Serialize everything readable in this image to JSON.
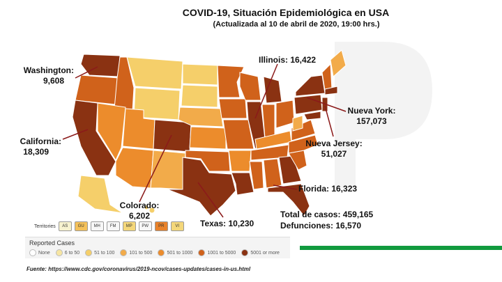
{
  "header": {
    "title": "COVID-19, Situación Epidemiológica en USA",
    "subtitle": "(Actualizada al 10 de abril de 2020, 19:00 hrs.)"
  },
  "callouts": {
    "washington": {
      "name": "Washington:",
      "value": "9,608"
    },
    "illinois": {
      "text": "Illinois: 16,422"
    },
    "nueva_york": {
      "name": "Nueva York:",
      "value": "157,073"
    },
    "california": {
      "name": "California:",
      "value": "18,309"
    },
    "nueva_jersey": {
      "name": "Nueva Jersey:",
      "value": "51,027"
    },
    "florida": {
      "text": "Florida: 16,323"
    },
    "colorado": {
      "name": "Colorado:",
      "value": "6,202"
    },
    "texas": {
      "text": "Texas: 10,230"
    }
  },
  "totals": {
    "cases": "Total de casos: 459,165",
    "deaths": "Defunciones: 16,570"
  },
  "territories": {
    "label": "Territories",
    "items": [
      {
        "code": "AS",
        "color": "#f7f2cf"
      },
      {
        "code": "GU",
        "color": "#f4c15a"
      },
      {
        "code": "MH",
        "color": "#f7f7f7"
      },
      {
        "code": "FM",
        "color": "#f7f7f7"
      },
      {
        "code": "MP",
        "color": "#f4d77a"
      },
      {
        "code": "PW",
        "color": "#f7f7f7"
      },
      {
        "code": "PR",
        "color": "#e9822a"
      },
      {
        "code": "VI",
        "color": "#f4d77a"
      }
    ]
  },
  "legend": {
    "title": "Reported Cases",
    "items": [
      {
        "label": "None",
        "color": "#ffffff"
      },
      {
        "label": "6 to 50",
        "color": "#f7e6a3"
      },
      {
        "label": "51 to 100",
        "color": "#f5cf6a"
      },
      {
        "label": "101 to 500",
        "color": "#f2ab4a"
      },
      {
        "label": "501 to 1000",
        "color": "#ec8c2c"
      },
      {
        "label": "1001 to 5000",
        "color": "#d0621b"
      },
      {
        "label": "5001 or more",
        "color": "#8a3212"
      }
    ]
  },
  "source": "Fuente: https://www.cdc.gov/coronavirus/2019-ncov/cases-updates/cases-in-us.html",
  "colors": {
    "accent_green": "#119a3e",
    "leader_line": "#8b1a1a"
  }
}
